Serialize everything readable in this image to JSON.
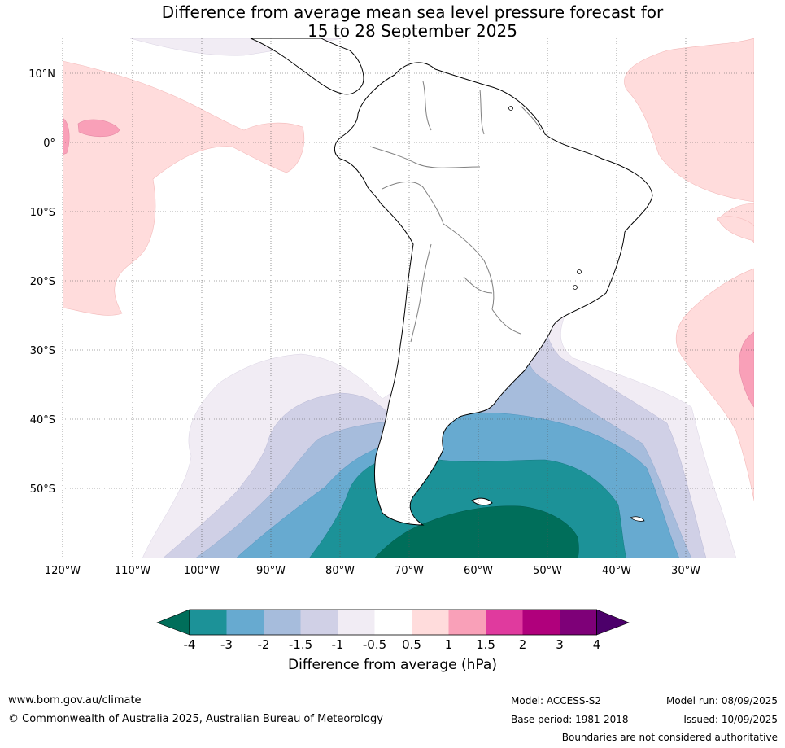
{
  "title_line1": "Difference from average mean sea level pressure forecast for",
  "title_line2": "15 to 28 September 2025",
  "map": {
    "lon_labels": [
      "120°W",
      "110°W",
      "100°W",
      "90°W",
      "80°W",
      "70°W",
      "60°W",
      "50°W",
      "40°W",
      "30°W"
    ],
    "lat_labels": [
      "10°N",
      "0°",
      "10°S",
      "20°S",
      "30°S",
      "40°S",
      "50°S"
    ],
    "extent": {
      "lon_min": -120,
      "lon_max": -20,
      "lat_min": -60,
      "lat_max": 15
    },
    "land_fill": "#ffffff",
    "coast_color": "#000000",
    "border_color": "#808080"
  },
  "colorbar": {
    "labels": [
      "-4",
      "-3",
      "-2",
      "-1.5",
      "-1",
      "-0.5",
      "0.5",
      "1",
      "1.5",
      "2",
      "3",
      "4"
    ],
    "colors": [
      "#006e5a",
      "#1c9298",
      "#67aad0",
      "#a6bcdc",
      "#d0d0e6",
      "#f1ecf4",
      "#ffffff",
      "#ffdcdc",
      "#f9a0b8",
      "#e03a9e",
      "#b0007c",
      "#7e0078",
      "#4c006a"
    ],
    "title": "Difference from average (hPa)"
  },
  "footer": {
    "website": "www.bom.gov.au/climate",
    "copyright": "© Commonwealth of Australia 2025, Australian Bureau of Meteorology",
    "model": "Model: ACCESS-S2",
    "base_period": "Base period: 1981-2018",
    "model_run": "Model run: 08/09/2025",
    "issued": "Issued: 10/09/2025",
    "disclaimer": "Boundaries are not considered authoritative"
  }
}
